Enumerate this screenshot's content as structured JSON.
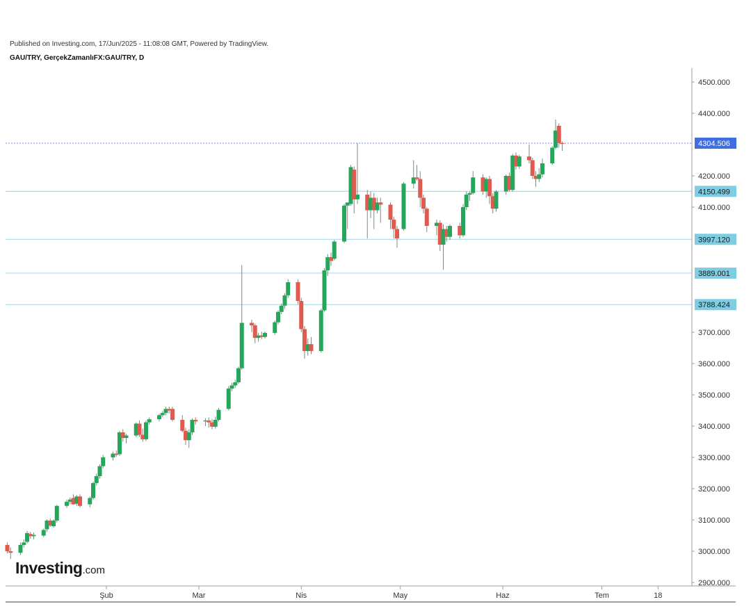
{
  "header": {
    "published": "Published on Investing.com, 17/Jun/2025 - 11:08:08 GMT, Powered by TradingView.",
    "symbol": "GAU/TRY, GerçekZamanlıFX:GAU/TRY, D"
  },
  "logo": {
    "brand": "Investing",
    "suffix": ".com"
  },
  "colors": {
    "up": "#26a65b",
    "down": "#e05a50",
    "wick": "#7a8b80",
    "current_line": "#6f8ee8",
    "current_label_bg": "#3f6ee0",
    "level_line": "#a6dcec",
    "level_label_bg": "#7fcde3",
    "axis": "#9e9e9e"
  },
  "chart_data": {
    "type": "candlestick",
    "title": "",
    "xlabel": "",
    "ylabel": "",
    "ylim": [
      2890,
      4550
    ],
    "y_ticks": [
      "4500.000",
      "4400.000",
      "4200.000",
      "4100.000",
      "3700.000",
      "3600.000",
      "3500.000",
      "3400.000",
      "3300.000",
      "3200.000",
      "3100.000",
      "3000.000",
      "2900.000"
    ],
    "x_ticks": [
      {
        "label": "Şub",
        "date": "2025-02-01"
      },
      {
        "label": "Mar",
        "date": "2025-03-01"
      },
      {
        "label": "Nis",
        "date": "2025-04-01"
      },
      {
        "label": "May",
        "date": "2025-05-01"
      },
      {
        "label": "Haz",
        "date": "2025-06-01"
      },
      {
        "label": "Tem",
        "date": "2025-07-01"
      },
      {
        "label": "18",
        "date": "2025-07-18"
      }
    ],
    "current_price": {
      "value": 4304.506,
      "label": "4304.506"
    },
    "levels": [
      {
        "value": 4150.499,
        "label": "4150.499"
      },
      {
        "value": 3997.12,
        "label": "3997.120"
      },
      {
        "value": 3889.001,
        "label": "3889.001"
      },
      {
        "value": 3788.424,
        "label": "3788.424"
      }
    ],
    "candles": [
      {
        "date": "2025-01-02",
        "o": 3020,
        "h": 3028,
        "l": 2993,
        "c": 3000
      },
      {
        "date": "2025-01-03",
        "o": 3000,
        "h": 3012,
        "l": 2975,
        "c": 2995
      },
      {
        "date": "2025-01-06",
        "o": 2995,
        "h": 3028,
        "l": 2988,
        "c": 3020
      },
      {
        "date": "2025-01-07",
        "o": 3020,
        "h": 3038,
        "l": 3012,
        "c": 3028
      },
      {
        "date": "2025-01-08",
        "o": 3030,
        "h": 3065,
        "l": 3025,
        "c": 3058
      },
      {
        "date": "2025-01-09",
        "o": 3055,
        "h": 3062,
        "l": 3040,
        "c": 3048
      },
      {
        "date": "2025-01-10",
        "o": 3048,
        "h": 3060,
        "l": 3038,
        "c": 3052
      },
      {
        "date": "2025-01-13",
        "o": 3050,
        "h": 3072,
        "l": 3045,
        "c": 3068
      },
      {
        "date": "2025-01-14",
        "o": 3070,
        "h": 3102,
        "l": 3062,
        "c": 3098
      },
      {
        "date": "2025-01-15",
        "o": 3098,
        "h": 3105,
        "l": 3078,
        "c": 3082
      },
      {
        "date": "2025-01-16",
        "o": 3080,
        "h": 3102,
        "l": 3075,
        "c": 3098
      },
      {
        "date": "2025-01-17",
        "o": 3098,
        "h": 3148,
        "l": 3092,
        "c": 3145
      },
      {
        "date": "2025-01-20",
        "o": 3145,
        "h": 3165,
        "l": 3138,
        "c": 3158
      },
      {
        "date": "2025-01-21",
        "o": 3158,
        "h": 3172,
        "l": 3150,
        "c": 3165
      },
      {
        "date": "2025-01-22",
        "o": 3170,
        "h": 3182,
        "l": 3148,
        "c": 3150
      },
      {
        "date": "2025-01-23",
        "o": 3152,
        "h": 3180,
        "l": 3145,
        "c": 3175
      },
      {
        "date": "2025-01-24",
        "o": 3175,
        "h": 3182,
        "l": 3140,
        "c": 3145
      },
      {
        "date": "2025-01-27",
        "o": 3150,
        "h": 3175,
        "l": 3140,
        "c": 3170
      },
      {
        "date": "2025-01-28",
        "o": 3170,
        "h": 3222,
        "l": 3165,
        "c": 3218
      },
      {
        "date": "2025-01-29",
        "o": 3218,
        "h": 3248,
        "l": 3210,
        "c": 3240
      },
      {
        "date": "2025-01-30",
        "o": 3240,
        "h": 3278,
        "l": 3232,
        "c": 3272
      },
      {
        "date": "2025-01-31",
        "o": 3272,
        "h": 3308,
        "l": 3265,
        "c": 3300
      },
      {
        "date": "2025-02-03",
        "o": 3300,
        "h": 3318,
        "l": 3290,
        "c": 3312
      },
      {
        "date": "2025-02-04",
        "o": 3312,
        "h": 3322,
        "l": 3302,
        "c": 3308
      },
      {
        "date": "2025-02-05",
        "o": 3310,
        "h": 3385,
        "l": 3305,
        "c": 3380
      },
      {
        "date": "2025-02-06",
        "o": 3380,
        "h": 3390,
        "l": 3350,
        "c": 3362
      },
      {
        "date": "2025-02-07",
        "o": 3362,
        "h": 3375,
        "l": 3345,
        "c": 3370
      },
      {
        "date": "2025-02-10",
        "o": 3370,
        "h": 3412,
        "l": 3365,
        "c": 3408
      },
      {
        "date": "2025-02-11",
        "o": 3408,
        "h": 3418,
        "l": 3365,
        "c": 3372
      },
      {
        "date": "2025-02-12",
        "o": 3372,
        "h": 3392,
        "l": 3350,
        "c": 3358
      },
      {
        "date": "2025-02-13",
        "o": 3358,
        "h": 3418,
        "l": 3352,
        "c": 3412
      },
      {
        "date": "2025-02-14",
        "o": 3412,
        "h": 3428,
        "l": 3405,
        "c": 3422
      },
      {
        "date": "2025-02-17",
        "o": 3422,
        "h": 3440,
        "l": 3415,
        "c": 3435
      },
      {
        "date": "2025-02-18",
        "o": 3435,
        "h": 3448,
        "l": 3428,
        "c": 3442
      },
      {
        "date": "2025-02-19",
        "o": 3442,
        "h": 3462,
        "l": 3435,
        "c": 3455
      },
      {
        "date": "2025-02-20",
        "o": 3455,
        "h": 3462,
        "l": 3440,
        "c": 3450
      },
      {
        "date": "2025-02-21",
        "o": 3455,
        "h": 3462,
        "l": 3415,
        "c": 3420
      },
      {
        "date": "2025-02-24",
        "o": 3420,
        "h": 3435,
        "l": 3380,
        "c": 3385
      },
      {
        "date": "2025-02-25",
        "o": 3385,
        "h": 3395,
        "l": 3340,
        "c": 3355
      },
      {
        "date": "2025-02-26",
        "o": 3355,
        "h": 3390,
        "l": 3330,
        "c": 3380
      },
      {
        "date": "2025-02-27",
        "o": 3380,
        "h": 3425,
        "l": 3372,
        "c": 3420
      },
      {
        "date": "2025-02-28",
        "o": 3420,
        "h": 3428,
        "l": 3405,
        "c": 3415
      },
      {
        "date": "2025-03-03",
        "o": 3415,
        "h": 3425,
        "l": 3400,
        "c": 3418
      },
      {
        "date": "2025-03-04",
        "o": 3418,
        "h": 3428,
        "l": 3395,
        "c": 3412
      },
      {
        "date": "2025-03-05",
        "o": 3412,
        "h": 3422,
        "l": 3390,
        "c": 3398
      },
      {
        "date": "2025-03-06",
        "o": 3398,
        "h": 3430,
        "l": 3392,
        "c": 3420
      },
      {
        "date": "2025-03-07",
        "o": 3420,
        "h": 3458,
        "l": 3415,
        "c": 3452
      },
      {
        "date": "2025-03-10",
        "o": 3455,
        "h": 3528,
        "l": 3450,
        "c": 3520
      },
      {
        "date": "2025-03-11",
        "o": 3520,
        "h": 3538,
        "l": 3512,
        "c": 3530
      },
      {
        "date": "2025-03-12",
        "o": 3530,
        "h": 3548,
        "l": 3522,
        "c": 3540
      },
      {
        "date": "2025-03-13",
        "o": 3540,
        "h": 3590,
        "l": 3535,
        "c": 3585
      },
      {
        "date": "2025-03-14",
        "o": 3585,
        "h": 3915,
        "l": 3580,
        "c": 3730
      },
      {
        "date": "2025-03-17",
        "o": 3730,
        "h": 3740,
        "l": 3700,
        "c": 3722
      },
      {
        "date": "2025-03-18",
        "o": 3722,
        "h": 3728,
        "l": 3665,
        "c": 3682
      },
      {
        "date": "2025-03-19",
        "o": 3682,
        "h": 3698,
        "l": 3670,
        "c": 3690
      },
      {
        "date": "2025-03-20",
        "o": 3690,
        "h": 3702,
        "l": 3678,
        "c": 3685
      },
      {
        "date": "2025-03-21",
        "o": 3685,
        "h": 3702,
        "l": 3680,
        "c": 3698
      },
      {
        "date": "2025-03-24",
        "o": 3698,
        "h": 3738,
        "l": 3692,
        "c": 3732
      },
      {
        "date": "2025-03-25",
        "o": 3732,
        "h": 3770,
        "l": 3725,
        "c": 3765
      },
      {
        "date": "2025-03-26",
        "o": 3765,
        "h": 3792,
        "l": 3758,
        "c": 3785
      },
      {
        "date": "2025-03-27",
        "o": 3785,
        "h": 3825,
        "l": 3775,
        "c": 3818
      },
      {
        "date": "2025-03-28",
        "o": 3818,
        "h": 3870,
        "l": 3810,
        "c": 3860
      },
      {
        "date": "2025-03-31",
        "o": 3860,
        "h": 3868,
        "l": 3790,
        "c": 3800
      },
      {
        "date": "2025-04-01",
        "o": 3800,
        "h": 3810,
        "l": 3700,
        "c": 3710
      },
      {
        "date": "2025-04-02",
        "o": 3710,
        "h": 3720,
        "l": 3615,
        "c": 3640
      },
      {
        "date": "2025-04-03",
        "o": 3640,
        "h": 3680,
        "l": 3625,
        "c": 3662
      },
      {
        "date": "2025-04-04",
        "o": 3662,
        "h": 3685,
        "l": 3630,
        "c": 3640
      },
      {
        "date": "2025-04-07",
        "o": 3640,
        "h": 3775,
        "l": 3635,
        "c": 3770
      },
      {
        "date": "2025-04-08",
        "o": 3770,
        "h": 3905,
        "l": 3765,
        "c": 3898
      },
      {
        "date": "2025-04-09",
        "o": 3898,
        "h": 3950,
        "l": 3880,
        "c": 3940
      },
      {
        "date": "2025-04-10",
        "o": 3940,
        "h": 3955,
        "l": 3912,
        "c": 3928
      },
      {
        "date": "2025-04-11",
        "o": 3935,
        "h": 3995,
        "l": 3930,
        "c": 3990
      },
      {
        "date": "2025-04-14",
        "o": 3990,
        "h": 4110,
        "l": 3985,
        "c": 4105
      },
      {
        "date": "2025-04-15",
        "o": 4105,
        "h": 4115,
        "l": 4030,
        "c": 4115
      },
      {
        "date": "2025-04-16",
        "o": 4110,
        "h": 4235,
        "l": 4105,
        "c": 4228
      },
      {
        "date": "2025-04-17",
        "o": 4220,
        "h": 4230,
        "l": 4080,
        "c": 4125
      },
      {
        "date": "2025-04-18",
        "o": 4125,
        "h": 4305,
        "l": 4110,
        "c": 4140
      },
      {
        "date": "2025-04-21",
        "o": 4140,
        "h": 4155,
        "l": 4000,
        "c": 4090
      },
      {
        "date": "2025-04-22",
        "o": 4090,
        "h": 4150,
        "l": 4065,
        "c": 4130
      },
      {
        "date": "2025-04-23",
        "o": 4130,
        "h": 4145,
        "l": 4030,
        "c": 4090
      },
      {
        "date": "2025-04-24",
        "o": 4090,
        "h": 4130,
        "l": 4080,
        "c": 4115
      },
      {
        "date": "2025-04-25",
        "o": 4115,
        "h": 4130,
        "l": 4050,
        "c": 4108
      },
      {
        "date": "2025-04-28",
        "o": 4108,
        "h": 4115,
        "l": 4030,
        "c": 4060
      },
      {
        "date": "2025-04-29",
        "o": 4060,
        "h": 4070,
        "l": 4000,
        "c": 4030
      },
      {
        "date": "2025-04-30",
        "o": 4030,
        "h": 4040,
        "l": 3970,
        "c": 4000
      },
      {
        "date": "2025-05-02",
        "o": 4030,
        "h": 4180,
        "l": 4025,
        "c": 4175
      },
      {
        "date": "2025-05-05",
        "o": 4175,
        "h": 4250,
        "l": 4160,
        "c": 4195
      },
      {
        "date": "2025-05-06",
        "o": 4195,
        "h": 4235,
        "l": 4185,
        "c": 4190
      },
      {
        "date": "2025-05-07",
        "o": 4190,
        "h": 4215,
        "l": 4100,
        "c": 4130
      },
      {
        "date": "2025-05-08",
        "o": 4130,
        "h": 4140,
        "l": 4080,
        "c": 4095
      },
      {
        "date": "2025-05-09",
        "o": 4095,
        "h": 4100,
        "l": 4020,
        "c": 4040
      },
      {
        "date": "2025-05-12",
        "o": 4040,
        "h": 4060,
        "l": 4010,
        "c": 4050
      },
      {
        "date": "2025-05-13",
        "o": 4050,
        "h": 4058,
        "l": 3960,
        "c": 3980
      },
      {
        "date": "2025-05-14",
        "o": 3980,
        "h": 4045,
        "l": 3900,
        "c": 4030
      },
      {
        "date": "2025-05-15",
        "o": 4030,
        "h": 4040,
        "l": 3990,
        "c": 4005
      },
      {
        "date": "2025-05-16",
        "o": 4005,
        "h": 4045,
        "l": 3995,
        "c": 4040
      },
      {
        "date": "2025-05-19",
        "o": 4040,
        "h": 4050,
        "l": 4000,
        "c": 4010
      },
      {
        "date": "2025-05-20",
        "o": 4010,
        "h": 4110,
        "l": 4005,
        "c": 4100
      },
      {
        "date": "2025-05-21",
        "o": 4100,
        "h": 4150,
        "l": 4090,
        "c": 4140
      },
      {
        "date": "2025-05-22",
        "o": 4140,
        "h": 4150,
        "l": 4120,
        "c": 4145
      },
      {
        "date": "2025-05-23",
        "o": 4145,
        "h": 4215,
        "l": 4140,
        "c": 4195
      },
      {
        "date": "2025-05-26",
        "o": 4195,
        "h": 4205,
        "l": 4140,
        "c": 4150
      },
      {
        "date": "2025-05-27",
        "o": 4150,
        "h": 4195,
        "l": 4130,
        "c": 4190
      },
      {
        "date": "2025-05-28",
        "o": 4190,
        "h": 4200,
        "l": 4110,
        "c": 4135
      },
      {
        "date": "2025-05-29",
        "o": 4135,
        "h": 4145,
        "l": 4080,
        "c": 4095
      },
      {
        "date": "2025-05-30",
        "o": 4095,
        "h": 4155,
        "l": 4085,
        "c": 4150
      },
      {
        "date": "2025-06-02",
        "o": 4150,
        "h": 4205,
        "l": 4140,
        "c": 4200
      },
      {
        "date": "2025-06-03",
        "o": 4200,
        "h": 4210,
        "l": 4150,
        "c": 4155
      },
      {
        "date": "2025-06-04",
        "o": 4155,
        "h": 4270,
        "l": 4150,
        "c": 4265
      },
      {
        "date": "2025-06-05",
        "o": 4265,
        "h": 4275,
        "l": 4220,
        "c": 4230
      },
      {
        "date": "2025-06-06",
        "o": 4230,
        "h": 4268,
        "l": 4222,
        "c": 4262
      },
      {
        "date": "2025-06-09",
        "o": 4262,
        "h": 4300,
        "l": 4240,
        "c": 4250
      },
      {
        "date": "2025-06-10",
        "o": 4250,
        "h": 4258,
        "l": 4190,
        "c": 4200
      },
      {
        "date": "2025-06-11",
        "o": 4200,
        "h": 4215,
        "l": 4165,
        "c": 4190
      },
      {
        "date": "2025-06-12",
        "o": 4190,
        "h": 4225,
        "l": 4180,
        "c": 4205
      },
      {
        "date": "2025-06-13",
        "o": 4205,
        "h": 4255,
        "l": 4195,
        "c": 4240
      },
      {
        "date": "2025-06-16",
        "o": 4240,
        "h": 4295,
        "l": 4235,
        "c": 4290
      },
      {
        "date": "2025-06-17",
        "o": 4290,
        "h": 4380,
        "l": 4285,
        "c": 4345
      },
      {
        "date": "2025-06-18",
        "o": 4360,
        "h": 4368,
        "l": 4290,
        "c": 4305
      },
      {
        "date": "2025-06-19",
        "o": 4305,
        "h": 4310,
        "l": 4280,
        "c": 4302
      }
    ]
  }
}
